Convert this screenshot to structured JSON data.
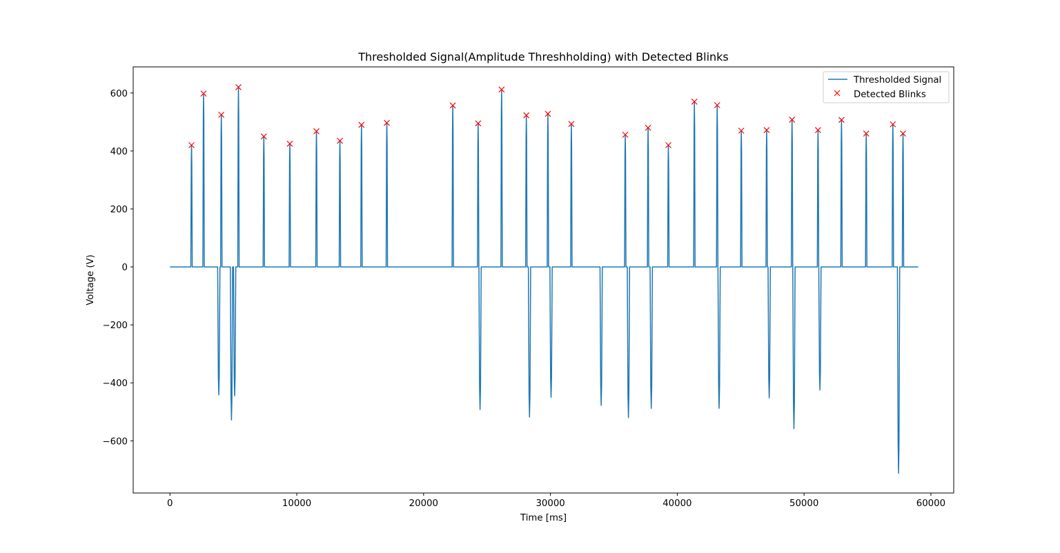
{
  "chart_data": {
    "type": "line",
    "title": "Thresholded Signal(Amplitude Threshholding) with Detected Blinks",
    "xlabel": "Time [ms]",
    "ylabel": "Voltage (V)",
    "xlim": [
      -2900,
      61800
    ],
    "ylim": [
      -780,
      690
    ],
    "xticks": [
      0,
      10000,
      20000,
      30000,
      40000,
      50000,
      60000
    ],
    "xtick_labels": [
      "0",
      "10000",
      "20000",
      "30000",
      "40000",
      "50000",
      "60000"
    ],
    "yticks": [
      -600,
      -400,
      -200,
      0,
      200,
      400,
      600
    ],
    "ytick_labels": [
      "−600",
      "−400",
      "−200",
      "0",
      "200",
      "400",
      "600"
    ],
    "grid": false,
    "legend": {
      "position": "top-right",
      "entries": [
        "Thresholded Signal",
        "Detected Blinks"
      ]
    },
    "series": [
      {
        "name": "Thresholded Signal",
        "kind": "line",
        "color": "#1f77b4",
        "x_range": [
          0,
          59000
        ],
        "baseline": 0,
        "positive_spikes": [
          {
            "x": 1700,
            "peak": 420
          },
          {
            "x": 2650,
            "peak": 598
          },
          {
            "x": 4050,
            "peak": 525
          },
          {
            "x": 5400,
            "peak": 620
          },
          {
            "x": 7400,
            "peak": 450
          },
          {
            "x": 9450,
            "peak": 425
          },
          {
            "x": 11550,
            "peak": 468
          },
          {
            "x": 13400,
            "peak": 435
          },
          {
            "x": 15100,
            "peak": 490
          },
          {
            "x": 17100,
            "peak": 497
          },
          {
            "x": 22300,
            "peak": 557
          },
          {
            "x": 24300,
            "peak": 495
          },
          {
            "x": 26150,
            "peak": 612
          },
          {
            "x": 28100,
            "peak": 523
          },
          {
            "x": 29800,
            "peak": 528
          },
          {
            "x": 31650,
            "peak": 493
          },
          {
            "x": 35900,
            "peak": 456
          },
          {
            "x": 37700,
            "peak": 480
          },
          {
            "x": 39300,
            "peak": 420
          },
          {
            "x": 41350,
            "peak": 570
          },
          {
            "x": 43150,
            "peak": 558
          },
          {
            "x": 45050,
            "peak": 470
          },
          {
            "x": 47050,
            "peak": 472
          },
          {
            "x": 49050,
            "peak": 508
          },
          {
            "x": 51100,
            "peak": 472
          },
          {
            "x": 52950,
            "peak": 507
          },
          {
            "x": 54900,
            "peak": 460
          },
          {
            "x": 57000,
            "peak": 492
          },
          {
            "x": 57800,
            "peak": 460
          }
        ],
        "negative_spikes": [
          {
            "x": 3850,
            "trough": -442
          },
          {
            "x": 4850,
            "trough": -528
          },
          {
            "x": 5100,
            "trough": -445
          },
          {
            "x": 24450,
            "trough": -492
          },
          {
            "x": 28350,
            "trough": -518
          },
          {
            "x": 30050,
            "trough": -450
          },
          {
            "x": 34000,
            "trough": -478
          },
          {
            "x": 36150,
            "trough": -520
          },
          {
            "x": 37950,
            "trough": -488
          },
          {
            "x": 43300,
            "trough": -488
          },
          {
            "x": 47250,
            "trough": -452
          },
          {
            "x": 49200,
            "trough": -558
          },
          {
            "x": 51250,
            "trough": -425
          },
          {
            "x": 57450,
            "trough": -712
          }
        ]
      },
      {
        "name": "Detected Blinks",
        "kind": "markers",
        "marker": "x",
        "color": "#ff0000",
        "x": [
          1700,
          2650,
          4050,
          5400,
          7400,
          9450,
          11550,
          13400,
          15100,
          17100,
          22300,
          24300,
          26150,
          28100,
          29800,
          31650,
          35900,
          37700,
          39300,
          41350,
          43150,
          45050,
          47050,
          49050,
          51100,
          52950,
          54900,
          57000,
          57800
        ],
        "y": [
          420,
          598,
          525,
          620,
          450,
          425,
          468,
          435,
          490,
          497,
          557,
          495,
          612,
          523,
          528,
          493,
          456,
          480,
          420,
          570,
          558,
          470,
          472,
          508,
          472,
          507,
          460,
          492,
          460
        ]
      }
    ]
  }
}
